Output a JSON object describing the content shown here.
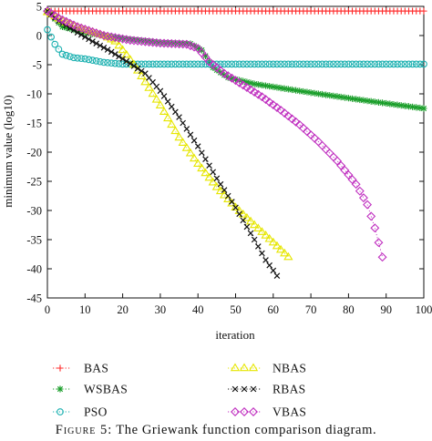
{
  "chart_data": {
    "type": "scatter",
    "title": "",
    "xlabel": "iteration",
    "ylabel": "minimum value (log10)",
    "xlim": [
      0,
      100
    ],
    "ylim": [
      -45,
      5
    ],
    "xticks": [
      "0",
      "10",
      "20",
      "30",
      "40",
      "50",
      "60",
      "70",
      "80",
      "90",
      "100"
    ],
    "yticks": [
      "5",
      "0",
      "-5",
      "-10",
      "-15",
      "-20",
      "-25",
      "-30",
      "-35",
      "-40",
      "-45"
    ],
    "grid": false,
    "legend_position": "below plot, two columns",
    "series": [
      {
        "name": "BAS",
        "marker": "plus",
        "color": "#ff2a2a",
        "x_range": [
          0,
          100
        ],
        "keypoints": [
          [
            0,
            4.2
          ],
          [
            100,
            4.2
          ]
        ]
      },
      {
        "name": "WSBAS",
        "marker": "star",
        "color": "#1a9e2a",
        "x_range": [
          0,
          100
        ],
        "keypoints": [
          [
            0,
            4.2
          ],
          [
            4,
            1.5
          ],
          [
            10,
            0.5
          ],
          [
            20,
            -0.5
          ],
          [
            30,
            -1.2
          ],
          [
            38,
            -1.4
          ],
          [
            41,
            -2.5
          ],
          [
            44,
            -5.5
          ],
          [
            48,
            -7.2
          ],
          [
            55,
            -8.3
          ],
          [
            70,
            -9.8
          ],
          [
            85,
            -11.2
          ],
          [
            100,
            -12.5
          ]
        ]
      },
      {
        "name": "PSO",
        "marker": "circle",
        "color": "#1ab0b0",
        "x_range": [
          0,
          100
        ],
        "keypoints": [
          [
            0,
            1.0
          ],
          [
            2,
            -1.5
          ],
          [
            4,
            -3.2
          ],
          [
            7,
            -3.8
          ],
          [
            10,
            -4.0
          ],
          [
            15,
            -4.6
          ],
          [
            20,
            -4.9
          ],
          [
            100,
            -4.9
          ]
        ]
      },
      {
        "name": "NBAS",
        "marker": "triangle",
        "color": "#e6e600",
        "x_range": [
          0,
          64
        ],
        "keypoints": [
          [
            0,
            4.0
          ],
          [
            5,
            2.2
          ],
          [
            10,
            1.0
          ],
          [
            15,
            0.0
          ],
          [
            18,
            -1.0
          ],
          [
            20,
            -2.5
          ],
          [
            23,
            -5.0
          ],
          [
            25,
            -7.0
          ],
          [
            30,
            -12.0
          ],
          [
            35,
            -17.5
          ],
          [
            40,
            -22.0
          ],
          [
            45,
            -26.0
          ],
          [
            50,
            -29.5
          ],
          [
            55,
            -32.5
          ],
          [
            60,
            -35.5
          ],
          [
            64,
            -38.0
          ]
        ]
      },
      {
        "name": "RBAS",
        "marker": "cross",
        "color": "#111111",
        "x_range": [
          0,
          61
        ],
        "keypoints": [
          [
            0,
            4.2
          ],
          [
            3,
            2.5
          ],
          [
            8,
            0.5
          ],
          [
            12,
            -1.0
          ],
          [
            17,
            -2.8
          ],
          [
            22,
            -4.8
          ],
          [
            26,
            -6.5
          ],
          [
            30,
            -9.5
          ],
          [
            35,
            -14.0
          ],
          [
            40,
            -19.0
          ],
          [
            45,
            -24.5
          ],
          [
            50,
            -29.5
          ],
          [
            55,
            -35.0
          ],
          [
            58,
            -38.5
          ],
          [
            61,
            -41.2
          ]
        ]
      },
      {
        "name": "VBAS",
        "marker": "diamond",
        "color": "#c030c0",
        "x_range": [
          0,
          89
        ],
        "keypoints": [
          [
            0,
            4.2
          ],
          [
            3,
            3.0
          ],
          [
            8,
            1.5
          ],
          [
            15,
            0.0
          ],
          [
            22,
            -0.8
          ],
          [
            30,
            -1.3
          ],
          [
            37,
            -1.5
          ],
          [
            40,
            -2.2
          ],
          [
            43,
            -4.5
          ],
          [
            47,
            -6.5
          ],
          [
            52,
            -8.5
          ],
          [
            57,
            -10.5
          ],
          [
            62,
            -12.8
          ],
          [
            67,
            -15.3
          ],
          [
            72,
            -18.2
          ],
          [
            77,
            -21.5
          ],
          [
            82,
            -25.5
          ],
          [
            85,
            -29.0
          ],
          [
            87,
            -33.0
          ],
          [
            89,
            -38.0
          ]
        ]
      }
    ]
  },
  "caption": {
    "label": "Figure 5:",
    "text": " The Griewank function comparison diagram."
  }
}
